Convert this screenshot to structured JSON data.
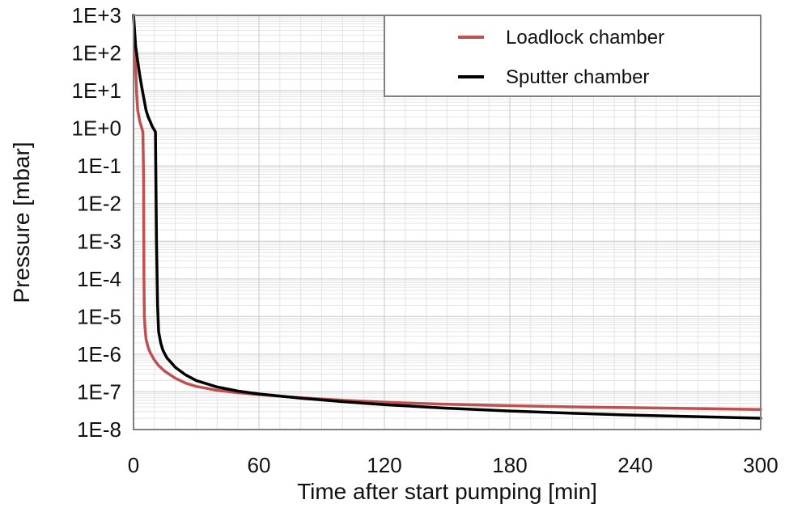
{
  "chart_data": {
    "type": "line",
    "title": "",
    "xlabel": "Time after start pumping [min]",
    "ylabel": "Pressure [mbar]",
    "x_scale": "linear",
    "y_scale": "log",
    "xlim": [
      0,
      300
    ],
    "ylim": [
      1e-08,
      1000
    ],
    "x_ticks": [
      0,
      60,
      120,
      180,
      240,
      300
    ],
    "x_tick_labels": [
      "0",
      "60",
      "120",
      "180",
      "240",
      "300"
    ],
    "y_ticks": [
      1000.0,
      100.0,
      10.0,
      1.0,
      0.1,
      0.01,
      0.001,
      0.0001,
      1e-05,
      1e-06,
      1e-07,
      1e-08
    ],
    "y_tick_labels": [
      "1E+3",
      "1E+2",
      "1E+1",
      "1E+0",
      "1E-1",
      "1E-2",
      "1E-3",
      "1E-4",
      "1E-5",
      "1E-6",
      "1E-7",
      "1E-8"
    ],
    "grid": true,
    "legend_position": "top-right",
    "series": [
      {
        "name": "Loadlock chamber",
        "color": "#c0504d",
        "x": [
          0,
          0.5,
          1,
          1.5,
          2,
          3,
          4,
          4.5,
          4.8,
          5,
          5.2,
          5.5,
          6,
          7,
          8,
          10,
          12,
          15,
          20,
          25,
          30,
          40,
          50,
          60,
          80,
          100,
          120,
          150,
          180,
          210,
          240,
          270,
          300
        ],
        "y": [
          1000,
          300,
          40,
          8,
          3,
          1.5,
          1.0,
          0.8,
          0.05,
          0.0001,
          1e-05,
          5e-06,
          2.5e-06,
          1.5e-06,
          1.1e-06,
          7e-07,
          5e-07,
          3.5e-07,
          2.3e-07,
          1.7e-07,
          1.4e-07,
          1.1e-07,
          9.5e-08,
          8.5e-08,
          7e-08,
          6e-08,
          5.3e-08,
          4.7e-08,
          4.3e-08,
          4e-08,
          3.8e-08,
          3.6e-08,
          3.4e-08
        ]
      },
      {
        "name": "Sputter chamber",
        "color": "#000000",
        "x": [
          0,
          0.5,
          1,
          2,
          3,
          4,
          5,
          6,
          7,
          8,
          9,
          10,
          10.5,
          11,
          11.5,
          12,
          13,
          14,
          15,
          16,
          18,
          20,
          25,
          30,
          40,
          50,
          60,
          80,
          100,
          120,
          150,
          180,
          210,
          240,
          270,
          300
        ],
        "y": [
          1000,
          400,
          150,
          60,
          25,
          12,
          6,
          3,
          2,
          1.5,
          1.1,
          0.9,
          0.8,
          0.001,
          2e-05,
          4e-06,
          2e-06,
          1.3e-06,
          1e-06,
          8e-07,
          6e-07,
          4.5e-07,
          2.8e-07,
          2e-07,
          1.35e-07,
          1.05e-07,
          8.8e-08,
          6.8e-08,
          5.5e-08,
          4.6e-08,
          3.7e-08,
          3.1e-08,
          2.7e-08,
          2.4e-08,
          2.2e-08,
          2e-08
        ]
      }
    ]
  }
}
